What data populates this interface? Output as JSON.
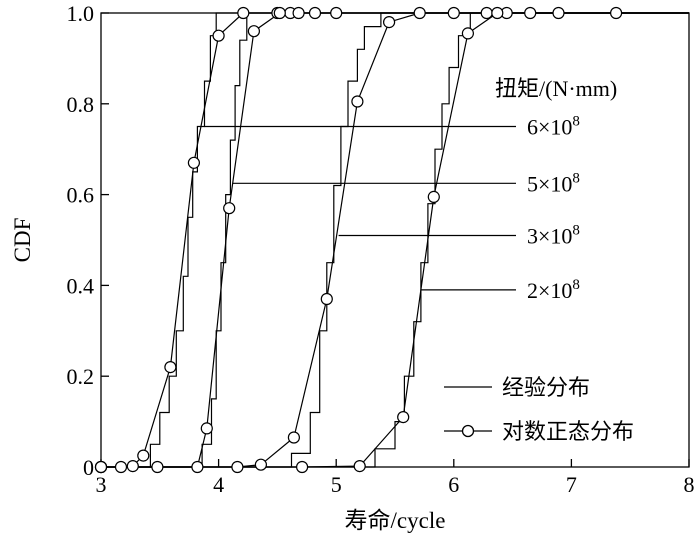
{
  "chart_data": {
    "type": "line",
    "title": "",
    "xlabel": "寿命/cycle",
    "ylabel": "CDF",
    "xlim": [
      3,
      8
    ],
    "ylim": [
      0,
      1.0
    ],
    "x_ticks": [
      "3",
      "4",
      "5",
      "6",
      "7",
      "8"
    ],
    "y_ticks": [
      "0",
      "0.2",
      "0.4",
      "0.6",
      "0.8",
      "1.0"
    ],
    "grid": false,
    "legend_placement": "bottom-right",
    "legend": [
      {
        "label": "经验分布",
        "style": "solid-line"
      },
      {
        "label": "对数正态分布",
        "style": "line-circle-marker"
      }
    ],
    "annotation_title": "扭矩/(N·mm)",
    "annotations": [
      {
        "label": "6×10",
        "exponent": "8",
        "target": [
          3.88,
          0.75
        ]
      },
      {
        "label": "5×10",
        "exponent": "8",
        "target": [
          4.12,
          0.625
        ]
      },
      {
        "label": "3×10",
        "exponent": "8",
        "target": [
          5.02,
          0.51
        ]
      },
      {
        "label": "2×10",
        "exponent": "8",
        "target": [
          5.72,
          0.39
        ]
      }
    ],
    "series": [
      {
        "torque": "6×10^8",
        "empirical": [
          [
            3.2,
            0
          ],
          [
            3.42,
            0
          ],
          [
            3.42,
            0.05
          ],
          [
            3.5,
            0.05
          ],
          [
            3.5,
            0.12
          ],
          [
            3.58,
            0.12
          ],
          [
            3.58,
            0.2
          ],
          [
            3.64,
            0.2
          ],
          [
            3.64,
            0.3
          ],
          [
            3.7,
            0.3
          ],
          [
            3.7,
            0.42
          ],
          [
            3.74,
            0.42
          ],
          [
            3.74,
            0.55
          ],
          [
            3.78,
            0.55
          ],
          [
            3.78,
            0.65
          ],
          [
            3.82,
            0.65
          ],
          [
            3.82,
            0.75
          ],
          [
            3.88,
            0.75
          ],
          [
            3.88,
            0.85
          ],
          [
            3.93,
            0.85
          ],
          [
            3.93,
            0.95
          ],
          [
            3.98,
            0.95
          ],
          [
            3.98,
            1.0
          ],
          [
            8,
            1.0
          ]
        ],
        "lognormal": [
          [
            3.0,
            0.0
          ],
          [
            3.17,
            0.0
          ],
          [
            3.27,
            0.002
          ],
          [
            3.36,
            0.025
          ],
          [
            3.59,
            0.22
          ],
          [
            3.79,
            0.67
          ],
          [
            4.0,
            0.95
          ],
          [
            4.21,
            1.0
          ],
          [
            4.5,
            1.0
          ],
          [
            4.61,
            1.0
          ],
          [
            4.82,
            1.0
          ],
          [
            5.0,
            1.0
          ],
          [
            8,
            1.0
          ]
        ]
      },
      {
        "torque": "5×10^8",
        "empirical": [
          [
            3.0,
            0
          ],
          [
            3.86,
            0
          ],
          [
            3.86,
            0.05
          ],
          [
            3.94,
            0.05
          ],
          [
            3.94,
            0.15
          ],
          [
            3.98,
            0.15
          ],
          [
            3.98,
            0.3
          ],
          [
            4.02,
            0.3
          ],
          [
            4.02,
            0.45
          ],
          [
            4.06,
            0.45
          ],
          [
            4.06,
            0.6
          ],
          [
            4.1,
            0.6
          ],
          [
            4.1,
            0.72
          ],
          [
            4.14,
            0.72
          ],
          [
            4.14,
            0.84
          ],
          [
            4.18,
            0.84
          ],
          [
            4.18,
            0.94
          ],
          [
            4.24,
            0.94
          ],
          [
            4.24,
            1.0
          ],
          [
            8,
            1.0
          ]
        ],
        "lognormal": [
          [
            3.0,
            0.0
          ],
          [
            3.48,
            0.0
          ],
          [
            3.82,
            0.0
          ],
          [
            3.9,
            0.085
          ],
          [
            4.09,
            0.57
          ],
          [
            4.3,
            0.96
          ],
          [
            4.52,
            1.0
          ],
          [
            4.68,
            1.0
          ],
          [
            8,
            1.0
          ]
        ]
      },
      {
        "torque": "3×10^8",
        "empirical": [
          [
            3.0,
            0
          ],
          [
            4.62,
            0
          ],
          [
            4.62,
            0.03
          ],
          [
            4.78,
            0.03
          ],
          [
            4.78,
            0.12
          ],
          [
            4.86,
            0.12
          ],
          [
            4.86,
            0.3
          ],
          [
            4.92,
            0.3
          ],
          [
            4.92,
            0.45
          ],
          [
            4.98,
            0.45
          ],
          [
            4.98,
            0.62
          ],
          [
            5.04,
            0.62
          ],
          [
            5.04,
            0.75
          ],
          [
            5.1,
            0.75
          ],
          [
            5.1,
            0.85
          ],
          [
            5.18,
            0.85
          ],
          [
            5.18,
            0.92
          ],
          [
            5.24,
            0.92
          ],
          [
            5.24,
            0.97
          ],
          [
            5.38,
            0.97
          ],
          [
            5.38,
            1.0
          ],
          [
            8,
            1.0
          ]
        ],
        "lognormal": [
          [
            3.0,
            0.0
          ],
          [
            4.16,
            0.0
          ],
          [
            4.36,
            0.005
          ],
          [
            4.64,
            0.065
          ],
          [
            4.92,
            0.37
          ],
          [
            5.18,
            0.805
          ],
          [
            5.45,
            0.98
          ],
          [
            5.71,
            1.0
          ],
          [
            6.0,
            1.0
          ],
          [
            6.28,
            1.0
          ],
          [
            6.45,
            1.0
          ],
          [
            8,
            1.0
          ]
        ]
      },
      {
        "torque": "2×10^8",
        "empirical": [
          [
            3.0,
            0
          ],
          [
            5.33,
            0
          ],
          [
            5.33,
            0.04
          ],
          [
            5.5,
            0.04
          ],
          [
            5.5,
            0.1
          ],
          [
            5.58,
            0.1
          ],
          [
            5.58,
            0.2
          ],
          [
            5.66,
            0.2
          ],
          [
            5.66,
            0.32
          ],
          [
            5.72,
            0.32
          ],
          [
            5.72,
            0.45
          ],
          [
            5.78,
            0.45
          ],
          [
            5.78,
            0.58
          ],
          [
            5.84,
            0.58
          ],
          [
            5.84,
            0.7
          ],
          [
            5.9,
            0.7
          ],
          [
            5.9,
            0.8
          ],
          [
            5.96,
            0.8
          ],
          [
            5.96,
            0.88
          ],
          [
            6.04,
            0.88
          ],
          [
            6.04,
            0.95
          ],
          [
            6.14,
            0.95
          ],
          [
            6.14,
            1.0
          ],
          [
            8,
            1.0
          ]
        ],
        "lognormal": [
          [
            3.0,
            0.0
          ],
          [
            4.71,
            0.0
          ],
          [
            5.2,
            0.002
          ],
          [
            5.57,
            0.11
          ],
          [
            5.83,
            0.595
          ],
          [
            6.12,
            0.955
          ],
          [
            6.37,
            1.0
          ],
          [
            6.65,
            1.0
          ],
          [
            6.89,
            1.0
          ],
          [
            7.38,
            1.0
          ],
          [
            8,
            1.0
          ]
        ]
      }
    ]
  }
}
